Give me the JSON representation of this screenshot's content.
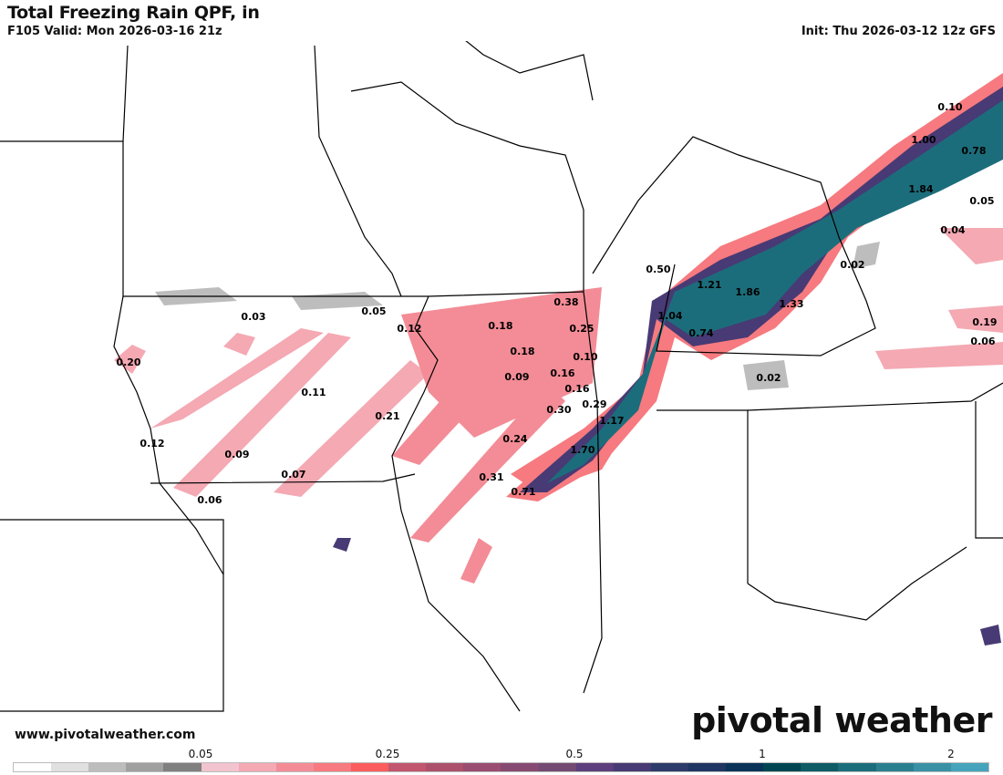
{
  "header": {
    "title": "Total Freezing Rain QPF, in",
    "valid": "F105 Valid: Mon 2026-03-16 21z",
    "init": "Init: Thu 2026-03-12 12z GFS"
  },
  "footer": {
    "website": "www.pivotalweather.com",
    "brand": "pivotal weather"
  },
  "colorbar": {
    "colors": [
      "#ffffff",
      "#e0e0e0",
      "#bdbdbd",
      "#a0a0a0",
      "#808080",
      "#f2c4cf",
      "#f4a9b3",
      "#f38c96",
      "#f67a7f",
      "#fb5c5d",
      "#c2566f",
      "#ac506c",
      "#994d70",
      "#874a72",
      "#734a72",
      "#5c3f7c",
      "#483a74",
      "#2d3b6a",
      "#1f3562",
      "#0a3358",
      "#004652",
      "#0f5b66",
      "#1c6d7b",
      "#2a7f8f",
      "#3a91a6",
      "#45a4bb"
    ],
    "ticks": [
      "0.05",
      "0.25",
      "0.5",
      "1",
      "2"
    ]
  },
  "map_labels": [
    "0.10",
    "1.00",
    "0.78",
    "1.84",
    "0.05",
    "0.04",
    "0.02",
    "0.50",
    "1.21",
    "1.86",
    "1.33",
    "1.04",
    "0.74",
    "0.19",
    "0.06",
    "0.02",
    "0.38",
    "0.25",
    "0.18",
    "0.18",
    "0.10",
    "0.09",
    "0.16",
    "0.16",
    "0.29",
    "0.30",
    "1.17",
    "0.24",
    "1.70",
    "0.31",
    "0.71",
    "0.03",
    "0.05",
    "0.12",
    "0.20",
    "0.11",
    "0.21",
    "0.12",
    "0.09",
    "0.07",
    "0.06"
  ]
}
